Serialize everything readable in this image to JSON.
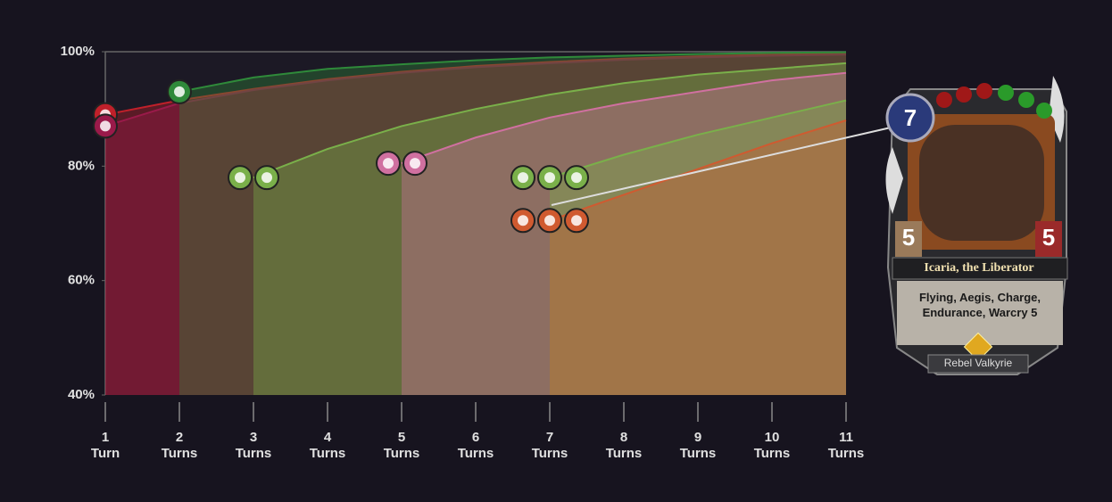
{
  "chart_data": {
    "type": "area",
    "x": [
      1,
      2,
      3,
      4,
      5,
      6,
      7,
      8,
      9,
      10,
      11
    ],
    "xlim": [
      1,
      11
    ],
    "xticks": [
      {
        "value": 1,
        "label": "1 Turn"
      },
      {
        "value": 2,
        "label": "2 Turns"
      },
      {
        "value": 3,
        "label": "3 Turns"
      },
      {
        "value": 4,
        "label": "4 Turns"
      },
      {
        "value": 5,
        "label": "5 Turns"
      },
      {
        "value": 6,
        "label": "6 Turns"
      },
      {
        "value": 7,
        "label": "7 Turns"
      },
      {
        "value": 8,
        "label": "8 Turns"
      },
      {
        "value": 9,
        "label": "9 Turns"
      },
      {
        "value": 10,
        "label": "10 Turns"
      },
      {
        "value": 11,
        "label": "11 Turns"
      }
    ],
    "ylim": [
      40,
      100
    ],
    "yticks": [
      {
        "value": 100,
        "label": "100%"
      },
      {
        "value": 80,
        "label": "80%"
      },
      {
        "value": 60,
        "label": "60%"
      },
      {
        "value": 40,
        "label": "40%"
      }
    ],
    "series": [
      {
        "color": "#c0202a",
        "icons": 1,
        "values": [
          89,
          91.5,
          93.5,
          95.2,
          96.5,
          97.5,
          98.2,
          98.8,
          99.2,
          99.5,
          99.7
        ]
      },
      {
        "color": "#9a1a4a",
        "icons": 1,
        "values": [
          87,
          91,
          93.3,
          95,
          96.3,
          97.3,
          98,
          98.6,
          99,
          99.3,
          99.5
        ]
      },
      {
        "color": "#2f8a3a",
        "icons": 1,
        "values": [
          null,
          93,
          95.5,
          97,
          97.8,
          98.5,
          99,
          99.3,
          99.6,
          99.8,
          99.9
        ]
      },
      {
        "color": "#7ab04a",
        "icons": 2,
        "values": [
          null,
          null,
          78,
          83,
          87,
          90,
          92.5,
          94.5,
          96,
          97,
          98
        ]
      },
      {
        "color": "#d070a0",
        "icons": 2,
        "values": [
          null,
          null,
          null,
          null,
          80.5,
          85,
          88.5,
          91,
          93,
          95,
          96.3
        ]
      },
      {
        "color": "#7ab04a",
        "icons": 3,
        "values": [
          null,
          null,
          null,
          null,
          null,
          null,
          78,
          82,
          85.5,
          88.5,
          91.5
        ]
      },
      {
        "color": "#d05a30",
        "icons": 3,
        "values": [
          null,
          null,
          null,
          null,
          null,
          null,
          70.5,
          75,
          79.5,
          84,
          88
        ]
      }
    ]
  },
  "card": {
    "cost": 7,
    "attack": 5,
    "health": 5,
    "name": "Icaria, the Liberator",
    "text": "Flying, Aegis, Charge, Endurance, Warcry 5",
    "subtype": "Rebel Valkyrie"
  }
}
